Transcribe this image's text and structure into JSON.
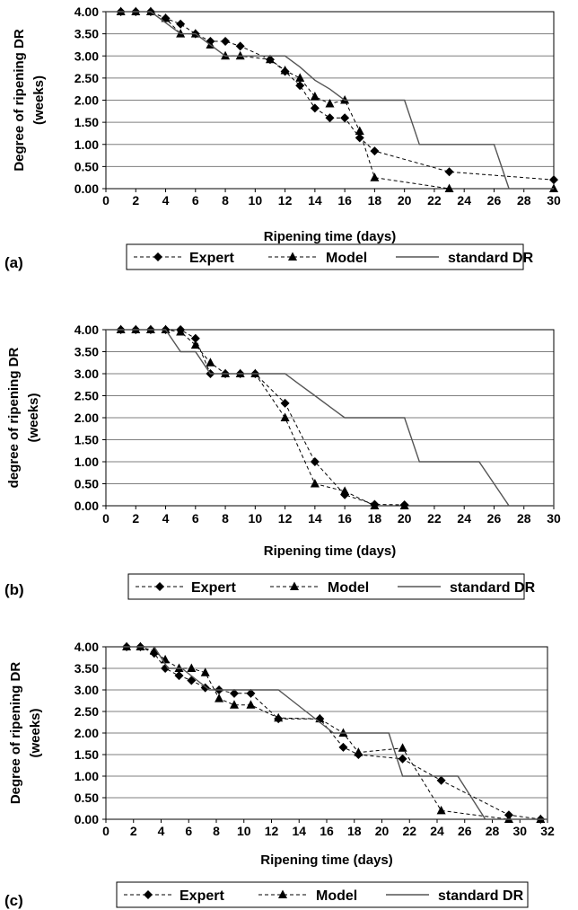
{
  "chart_data": [
    {
      "type": "line",
      "panel_label": "(a)",
      "xlabel": "Ripening time (days)",
      "ylabel": "Degree of ripening DR (weeks)",
      "ylabel_lines": [
        "Degree of ripening DR",
        "(weeks)"
      ],
      "xlim": [
        0,
        30
      ],
      "ylim": [
        0,
        4
      ],
      "xticks": [
        "0",
        "2",
        "4",
        "6",
        "8",
        "10",
        "12",
        "14",
        "16",
        "18",
        "20",
        "22",
        "24",
        "26",
        "28",
        "30"
      ],
      "yticks": [
        "0.00",
        "0.50",
        "1.00",
        "1.50",
        "2.00",
        "2.50",
        "3.00",
        "3.50",
        "4.00"
      ],
      "grid": "horizontal",
      "legend_position": "bottom",
      "series": [
        {
          "name": "Expert",
          "marker": "diamond",
          "dash": true,
          "x": [
            1,
            2,
            3,
            4,
            5,
            6,
            7,
            8,
            9,
            11,
            12,
            13,
            14,
            15,
            16,
            17,
            18,
            23,
            30
          ],
          "y": [
            4,
            4,
            4,
            3.85,
            3.72,
            3.5,
            3.33,
            3.33,
            3.22,
            2.92,
            2.65,
            2.33,
            1.82,
            1.6,
            1.6,
            1.15,
            0.85,
            0.38,
            0.2
          ]
        },
        {
          "name": "Model",
          "marker": "triangle",
          "dash": true,
          "x": [
            1,
            2,
            3,
            4,
            5,
            6,
            7,
            8,
            9,
            11,
            12,
            13,
            14,
            15,
            16,
            17,
            18,
            23,
            30
          ],
          "y": [
            4,
            4,
            4,
            3.85,
            3.5,
            3.5,
            3.25,
            3,
            3,
            2.92,
            2.67,
            2.5,
            2.08,
            1.92,
            2,
            1.3,
            0.25,
            0,
            0
          ]
        },
        {
          "name": "standard DR",
          "marker": "none",
          "dash": false,
          "x": [
            0,
            3,
            5,
            6,
            7,
            8,
            9,
            10,
            12,
            13,
            14,
            15,
            16,
            17,
            18,
            20,
            21,
            22,
            24,
            25,
            26,
            27,
            30
          ],
          "y": [
            4,
            4,
            3.5,
            3.5,
            3.25,
            3,
            3,
            3,
            3,
            2.75,
            2.45,
            2.25,
            2,
            2,
            2,
            2,
            1,
            1,
            1,
            1,
            1,
            0,
            0
          ]
        }
      ]
    },
    {
      "type": "line",
      "panel_label": "(b)",
      "xlabel": "Ripening time (days)",
      "ylabel": "degree of ripening DR (weeks)",
      "ylabel_lines": [
        "degree of ripening DR",
        "(weeks)"
      ],
      "xlim": [
        0,
        30
      ],
      "ylim": [
        0,
        4
      ],
      "xticks": [
        "0",
        "2",
        "4",
        "6",
        "8",
        "10",
        "12",
        "14",
        "16",
        "18",
        "20",
        "22",
        "24",
        "26",
        "28",
        "30"
      ],
      "yticks": [
        "0.00",
        "0.50",
        "1.00",
        "1.50",
        "2.00",
        "2.50",
        "3.00",
        "3.50",
        "4.00"
      ],
      "grid": "horizontal",
      "legend_position": "bottom",
      "series": [
        {
          "name": "Expert",
          "marker": "diamond",
          "dash": true,
          "x": [
            1,
            2,
            3,
            4,
            5,
            6,
            7,
            8,
            9,
            10,
            12,
            14,
            16,
            18,
            20
          ],
          "y": [
            4,
            4,
            4,
            4,
            4,
            3.8,
            3,
            3,
            3,
            3,
            2.33,
            1,
            0.25,
            0.03,
            0.02
          ]
        },
        {
          "name": "Model",
          "marker": "triangle",
          "dash": true,
          "x": [
            1,
            2,
            3,
            4,
            5,
            6,
            7,
            8,
            9,
            10,
            12,
            14,
            16,
            18,
            20
          ],
          "y": [
            4,
            4,
            4,
            4,
            3.95,
            3.65,
            3.25,
            3,
            3,
            3,
            2,
            0.5,
            0.33,
            0,
            0
          ]
        },
        {
          "name": "standard DR",
          "marker": "none",
          "dash": false,
          "x": [
            0,
            4,
            5,
            6,
            7,
            8,
            10,
            12,
            13,
            14,
            15,
            16,
            17,
            18,
            20,
            21,
            24,
            25,
            26,
            27,
            30
          ],
          "y": [
            4,
            4,
            3.5,
            3.5,
            3,
            3,
            3,
            3,
            2.75,
            2.5,
            2.25,
            2,
            2,
            2,
            2,
            1,
            1,
            1,
            0.5,
            0,
            0
          ]
        }
      ]
    },
    {
      "type": "line",
      "panel_label": "(c)",
      "xlabel": "Ripening time (days)",
      "ylabel": "Degree of ripening DR (weeks)",
      "ylabel_lines": [
        "Degree of ripening DR",
        "(weeks)"
      ],
      "xlim": [
        0,
        32
      ],
      "ylim": [
        0,
        4
      ],
      "xticks": [
        "0",
        "2",
        "4",
        "6",
        "8",
        "10",
        "12",
        "14",
        "16",
        "18",
        "20",
        "22",
        "24",
        "26",
        "28",
        "30",
        "32"
      ],
      "yticks": [
        "0.00",
        "0.50",
        "1.00",
        "1.50",
        "2.00",
        "2.50",
        "3.00",
        "3.50",
        "4.00"
      ],
      "grid": "horizontal",
      "legend_position": "bottom",
      "series": [
        {
          "name": "Expert",
          "marker": "diamond",
          "dash": true,
          "x": [
            1.5,
            2.5,
            3.5,
            4.3,
            5.3,
            6.2,
            7.2,
            8.2,
            9.3,
            10.5,
            12.5,
            15.5,
            17.2,
            18.3,
            21.5,
            24.3,
            29.2,
            31.5
          ],
          "y": [
            4,
            4,
            3.85,
            3.5,
            3.33,
            3.22,
            3.05,
            3,
            2.92,
            2.92,
            2.33,
            2.33,
            1.67,
            1.5,
            1.4,
            0.9,
            0.1,
            0
          ]
        },
        {
          "name": "Model",
          "marker": "triangle",
          "dash": true,
          "x": [
            1.5,
            2.5,
            3.5,
            4.3,
            5.3,
            6.2,
            7.2,
            8.2,
            9.3,
            10.5,
            12.5,
            15.5,
            17.2,
            18.3,
            21.5,
            24.3,
            29.2,
            31.5
          ],
          "y": [
            4,
            4,
            3.9,
            3.7,
            3.5,
            3.5,
            3.4,
            2.8,
            2.65,
            2.65,
            2.35,
            2.33,
            2,
            1.55,
            1.65,
            0.2,
            0,
            0
          ]
        },
        {
          "name": "standard DR",
          "marker": "none",
          "dash": false,
          "x": [
            0,
            3.5,
            4.5,
            5.5,
            6.5,
            7.5,
            8.5,
            10.5,
            12.5,
            13.5,
            14.5,
            15.5,
            16.5,
            18.5,
            20.5,
            21.5,
            24.5,
            25.5,
            26.5,
            27.5,
            32
          ],
          "y": [
            4,
            4,
            3.5,
            3.5,
            3.25,
            3,
            3,
            3,
            3,
            2.75,
            2.5,
            2.25,
            2,
            2,
            2,
            1,
            1,
            1,
            0.5,
            0,
            0
          ]
        }
      ]
    }
  ]
}
